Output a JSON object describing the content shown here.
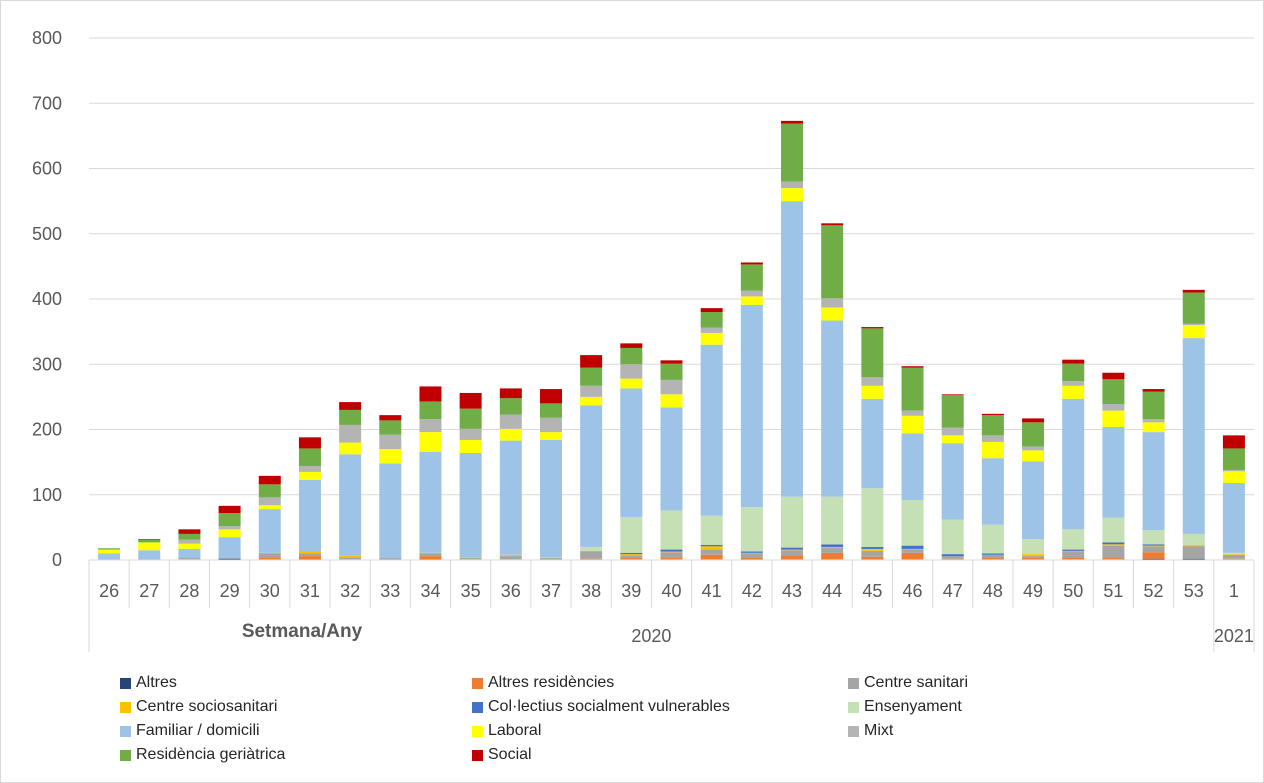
{
  "chart_data": {
    "type": "bar",
    "stacked": true,
    "categories": [
      "26",
      "27",
      "28",
      "29",
      "30",
      "31",
      "32",
      "33",
      "34",
      "35",
      "36",
      "37",
      "38",
      "39",
      "40",
      "41",
      "42",
      "43",
      "44",
      "45",
      "46",
      "47",
      "48",
      "49",
      "50",
      "51",
      "52",
      "53",
      "1"
    ],
    "year_groups": [
      {
        "label": "2020",
        "from": 0,
        "to": 27
      },
      {
        "label": "2021",
        "from": 28,
        "to": 28
      }
    ],
    "xlabel": "Setmana/Any",
    "ylabel": "",
    "ylim": [
      0,
      800
    ],
    "yticks": [
      0,
      100,
      200,
      300,
      400,
      500,
      600,
      700,
      800
    ],
    "grid": true,
    "legend_position": "bottom",
    "series": [
      {
        "name": "Altres",
        "color": "#264478",
        "values": [
          0,
          0,
          0,
          2,
          1,
          0,
          0,
          0,
          0,
          0,
          0,
          0,
          1,
          1,
          1,
          1,
          0,
          1,
          1,
          1,
          1,
          1,
          1,
          1,
          1,
          1,
          2,
          2,
          1
        ]
      },
      {
        "name": "Altres residències",
        "color": "#ed7d31",
        "values": [
          0,
          0,
          1,
          0,
          3,
          6,
          1,
          0,
          6,
          1,
          1,
          0,
          1,
          2,
          2,
          7,
          3,
          6,
          10,
          4,
          10,
          1,
          2,
          2,
          3,
          2,
          10,
          0,
          1
        ]
      },
      {
        "name": "Centre sanitari",
        "color": "#a5a5a5",
        "values": [
          0,
          0,
          2,
          1,
          6,
          4,
          3,
          3,
          4,
          2,
          5,
          3,
          11,
          4,
          9,
          8,
          7,
          8,
          8,
          9,
          5,
          4,
          5,
          3,
          9,
          19,
          9,
          18,
          6
        ]
      },
      {
        "name": "Centre sociosanitari",
        "color": "#ffc000",
        "values": [
          0,
          0,
          0,
          0,
          1,
          3,
          3,
          0,
          1,
          1,
          2,
          0,
          1,
          2,
          1,
          5,
          1,
          1,
          1,
          3,
          1,
          0,
          0,
          3,
          1,
          2,
          1,
          1,
          1
        ]
      },
      {
        "name": "Col·lectius socialment vulnerables",
        "color": "#4472c4",
        "values": [
          0,
          0,
          0,
          0,
          0,
          0,
          0,
          0,
          0,
          0,
          0,
          0,
          0,
          2,
          3,
          2,
          2,
          3,
          4,
          3,
          5,
          3,
          2,
          0,
          2,
          3,
          2,
          1,
          0
        ]
      },
      {
        "name": "Ensenyament",
        "color": "#c5e0b4",
        "values": [
          0,
          0,
          0,
          0,
          0,
          0,
          0,
          0,
          0,
          0,
          0,
          1,
          6,
          55,
          60,
          45,
          68,
          78,
          73,
          90,
          70,
          53,
          44,
          23,
          31,
          38,
          22,
          18,
          2
        ]
      },
      {
        "name": "Familiar / domicili",
        "color": "#9dc3e6",
        "values": [
          10,
          15,
          14,
          32,
          67,
          110,
          155,
          145,
          155,
          160,
          175,
          180,
          217,
          197,
          158,
          262,
          310,
          453,
          270,
          137,
          102,
          117,
          102,
          119,
          200,
          139,
          150,
          300,
          107
        ]
      },
      {
        "name": "Laboral",
        "color": "#ffff00",
        "values": [
          6,
          12,
          8,
          12,
          6,
          12,
          18,
          22,
          30,
          20,
          18,
          12,
          13,
          15,
          20,
          18,
          13,
          20,
          20,
          20,
          27,
          12,
          25,
          17,
          20,
          25,
          15,
          20,
          18
        ]
      },
      {
        "name": "Mixt",
        "color": "#b4b4b4",
        "values": [
          0,
          0,
          6,
          5,
          12,
          9,
          27,
          22,
          20,
          17,
          22,
          22,
          17,
          22,
          22,
          8,
          9,
          10,
          14,
          13,
          8,
          12,
          10,
          6,
          7,
          10,
          5,
          2,
          2
        ]
      },
      {
        "name": "Residència geriàtrica",
        "color": "#70ad47",
        "values": [
          2,
          4,
          9,
          20,
          20,
          27,
          23,
          22,
          27,
          31,
          25,
          22,
          28,
          25,
          25,
          24,
          40,
          89,
          112,
          75,
          66,
          50,
          31,
          37,
          27,
          38,
          42,
          48,
          33
        ]
      },
      {
        "name": "Social",
        "color": "#c00000",
        "values": [
          0,
          1,
          7,
          11,
          13,
          17,
          12,
          8,
          23,
          24,
          15,
          22,
          19,
          7,
          5,
          6,
          3,
          4,
          3,
          2,
          2,
          1,
          2,
          6,
          6,
          10,
          4,
          4,
          20
        ]
      }
    ]
  }
}
